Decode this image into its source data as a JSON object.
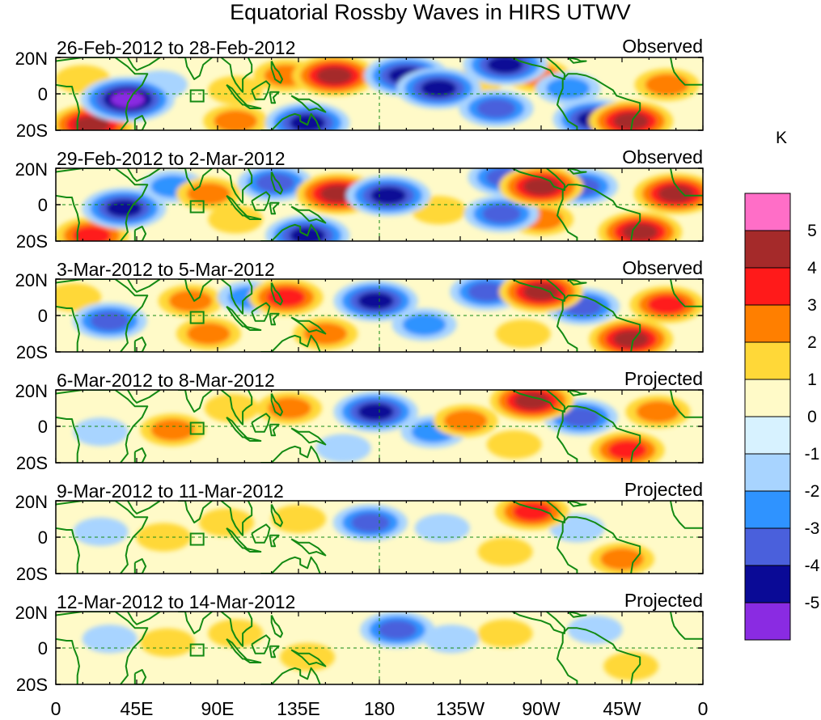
{
  "chart_data": {
    "type": "heatmap",
    "title": "Equatorial Rossby Waves in HIRS UTWV",
    "units": "K",
    "x_ticks": [
      "0",
      "45E",
      "90E",
      "135E",
      "180",
      "135W",
      "90W",
      "45W",
      "0"
    ],
    "x_range_deg": [
      0,
      360
    ],
    "y_ticks": [
      "20N",
      "0",
      "20S"
    ],
    "y_range_deg": [
      -20,
      20
    ],
    "colorbar": {
      "labels": [
        "5",
        "4",
        "3",
        "2",
        "1",
        "0",
        "-1",
        "-2",
        "-3",
        "-4",
        "-5"
      ],
      "colors": [
        "#ff6ec7",
        "#a52a2a",
        "#ff1a1a",
        "#ff7f00",
        "#ffd838",
        "#fffac8",
        "#d7f2ff",
        "#a8d4ff",
        "#2f93ff",
        "#4a60dc",
        "#0a0a96",
        "#8a2be2"
      ]
    },
    "contour_color": "#138a13",
    "panels": [
      {
        "period": "26-Feb-2012 to 28-Feb-2012",
        "status": "Observed",
        "features": [
          {
            "lon": 40,
            "lat": -3,
            "value": -5
          },
          {
            "lon": 20,
            "lat": -17,
            "value": 4
          },
          {
            "lon": 15,
            "lat": 8,
            "value": 1
          },
          {
            "lon": 58,
            "lat": 5,
            "value": -1
          },
          {
            "lon": 100,
            "lat": 2,
            "value": 1
          },
          {
            "lon": 100,
            "lat": -15,
            "value": 2
          },
          {
            "lon": 128,
            "lat": 10,
            "value": 2
          },
          {
            "lon": 155,
            "lat": 10,
            "value": 4
          },
          {
            "lon": 140,
            "lat": -16,
            "value": -4
          },
          {
            "lon": 195,
            "lat": 10,
            "value": -4
          },
          {
            "lon": 213,
            "lat": 3,
            "value": -4
          },
          {
            "lon": 233,
            "lat": 6,
            "value": 1
          },
          {
            "lon": 250,
            "lat": 16,
            "value": -4
          },
          {
            "lon": 245,
            "lat": -8,
            "value": -3
          },
          {
            "lon": 268,
            "lat": 10,
            "value": 2
          },
          {
            "lon": 285,
            "lat": 3,
            "value": -2
          },
          {
            "lon": 300,
            "lat": -14,
            "value": -4
          },
          {
            "lon": 320,
            "lat": -15,
            "value": 4
          },
          {
            "lon": 340,
            "lat": 5,
            "value": 2
          }
        ]
      },
      {
        "period": "29-Feb-2012 to 2-Mar-2012",
        "status": "Observed",
        "features": [
          {
            "lon": 38,
            "lat": -2,
            "value": -4
          },
          {
            "lon": 20,
            "lat": -17,
            "value": 3
          },
          {
            "lon": 65,
            "lat": 10,
            "value": -2
          },
          {
            "lon": 85,
            "lat": 6,
            "value": 2
          },
          {
            "lon": 100,
            "lat": -8,
            "value": 1
          },
          {
            "lon": 122,
            "lat": 12,
            "value": -3
          },
          {
            "lon": 157,
            "lat": 6,
            "value": 4
          },
          {
            "lon": 140,
            "lat": -17,
            "value": -4
          },
          {
            "lon": 185,
            "lat": 5,
            "value": -4
          },
          {
            "lon": 213,
            "lat": -3,
            "value": 1
          },
          {
            "lon": 248,
            "lat": -5,
            "value": -3
          },
          {
            "lon": 250,
            "lat": 15,
            "value": -3
          },
          {
            "lon": 270,
            "lat": 10,
            "value": 4
          },
          {
            "lon": 292,
            "lat": 10,
            "value": -3
          },
          {
            "lon": 325,
            "lat": -15,
            "value": 4
          },
          {
            "lon": 345,
            "lat": 6,
            "value": 4
          },
          {
            "lon": 270,
            "lat": -8,
            "value": 2
          }
        ]
      },
      {
        "period": "3-Mar-2012 to 5-Mar-2012",
        "status": "Observed",
        "features": [
          {
            "lon": 30,
            "lat": -3,
            "value": -3
          },
          {
            "lon": 10,
            "lat": 10,
            "value": 1
          },
          {
            "lon": 75,
            "lat": 8,
            "value": 2
          },
          {
            "lon": 85,
            "lat": -10,
            "value": 2
          },
          {
            "lon": 108,
            "lat": 10,
            "value": -2
          },
          {
            "lon": 128,
            "lat": 10,
            "value": 3
          },
          {
            "lon": 150,
            "lat": -10,
            "value": 2
          },
          {
            "lon": 178,
            "lat": 8,
            "value": -4
          },
          {
            "lon": 205,
            "lat": -5,
            "value": -2
          },
          {
            "lon": 240,
            "lat": 13,
            "value": -3
          },
          {
            "lon": 270,
            "lat": 13,
            "value": 4
          },
          {
            "lon": 293,
            "lat": 5,
            "value": -3
          },
          {
            "lon": 320,
            "lat": -13,
            "value": 4
          },
          {
            "lon": 340,
            "lat": 6,
            "value": 3
          },
          {
            "lon": 260,
            "lat": -10,
            "value": 1
          }
        ]
      },
      {
        "period": "6-Mar-2012 to 8-Mar-2012",
        "status": "Projected",
        "features": [
          {
            "lon": 25,
            "lat": -3,
            "value": -1
          },
          {
            "lon": 65,
            "lat": -2,
            "value": 2
          },
          {
            "lon": 98,
            "lat": 10,
            "value": 1
          },
          {
            "lon": 130,
            "lat": 10,
            "value": 2
          },
          {
            "lon": 160,
            "lat": -12,
            "value": -1
          },
          {
            "lon": 178,
            "lat": 8,
            "value": -4
          },
          {
            "lon": 210,
            "lat": -3,
            "value": -2
          },
          {
            "lon": 228,
            "lat": 3,
            "value": 2
          },
          {
            "lon": 265,
            "lat": 14,
            "value": 4
          },
          {
            "lon": 292,
            "lat": 5,
            "value": -3
          },
          {
            "lon": 318,
            "lat": -13,
            "value": 3
          },
          {
            "lon": 335,
            "lat": 8,
            "value": 2
          },
          {
            "lon": 255,
            "lat": -10,
            "value": 1
          }
        ]
      },
      {
        "period": "9-Mar-2012 to 11-Mar-2012",
        "status": "Projected",
        "features": [
          {
            "lon": 25,
            "lat": 3,
            "value": -1
          },
          {
            "lon": 60,
            "lat": 0,
            "value": 1
          },
          {
            "lon": 95,
            "lat": 8,
            "value": 1
          },
          {
            "lon": 135,
            "lat": 10,
            "value": 1
          },
          {
            "lon": 175,
            "lat": 8,
            "value": -3
          },
          {
            "lon": 215,
            "lat": 5,
            "value": -1
          },
          {
            "lon": 265,
            "lat": 14,
            "value": 3
          },
          {
            "lon": 290,
            "lat": 5,
            "value": -1
          },
          {
            "lon": 315,
            "lat": -12,
            "value": 2
          },
          {
            "lon": 250,
            "lat": -8,
            "value": 1
          }
        ]
      },
      {
        "period": "12-Mar-2012 to 14-Mar-2012",
        "status": "Projected",
        "features": [
          {
            "lon": 30,
            "lat": 5,
            "value": -1
          },
          {
            "lon": 62,
            "lat": 3,
            "value": 1
          },
          {
            "lon": 100,
            "lat": 8,
            "value": 1
          },
          {
            "lon": 140,
            "lat": -5,
            "value": 1
          },
          {
            "lon": 190,
            "lat": 10,
            "value": -3
          },
          {
            "lon": 220,
            "lat": 5,
            "value": -1
          },
          {
            "lon": 250,
            "lat": 8,
            "value": 1
          },
          {
            "lon": 300,
            "lat": 10,
            "value": -1
          },
          {
            "lon": 320,
            "lat": -10,
            "value": 1
          }
        ]
      }
    ]
  }
}
